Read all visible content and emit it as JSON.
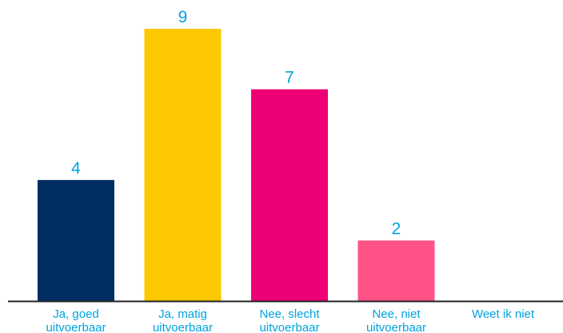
{
  "chart_data": {
    "type": "bar",
    "categories": [
      [
        "Ja, goed",
        "uitvoerbaar"
      ],
      [
        "Ja, matig",
        "uitvoerbaar"
      ],
      [
        "Nee, slecht",
        "uitvoerbaar"
      ],
      [
        "Nee, niet",
        "uitvoerbaar"
      ],
      [
        "Weet ik niet"
      ]
    ],
    "values": [
      4,
      9,
      7,
      2,
      0
    ],
    "colors": [
      "#002d62",
      "#fcc800",
      "#ee0077",
      "#ff5287",
      "#ff5287"
    ],
    "label_color": "#00a3e0",
    "axis_color": "#222222",
    "ylim": [
      0,
      9
    ],
    "grid": false,
    "legend": "none"
  }
}
